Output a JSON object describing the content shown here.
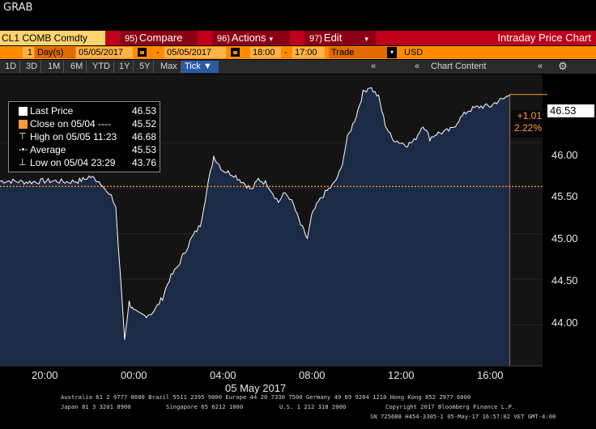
{
  "window_title": "GRAB",
  "command_bar": {
    "ticker": "CL1 COMB Comdty",
    "buttons": [
      {
        "num": "95)",
        "label": "Compare"
      },
      {
        "num": "96)",
        "label": "Actions"
      },
      {
        "num": "97)",
        "label": "Edit"
      }
    ],
    "panel_title": "Intraday Price Chart"
  },
  "date_bar": {
    "period_count": "1",
    "period_unit": "Day(s)",
    "start_date": "05/05/2017",
    "separator": "-",
    "end_date": "05/05/2017",
    "start_time": "18:00",
    "time_sep": "-",
    "end_time": "17:00",
    "field": "Trade",
    "currency": "USD"
  },
  "range_bar": {
    "ranges": [
      "1D",
      "3D",
      "1M",
      "6M",
      "YTD",
      "1Y",
      "5Y",
      "Max"
    ],
    "selected_interval": "Tick",
    "chart_content_label": "Chart Content"
  },
  "legend": {
    "last_price": {
      "label": "Last Price",
      "value": "46.53"
    },
    "close": {
      "label": "Close on 05/04 ----",
      "value": "45.52"
    },
    "high": {
      "label": "High on 05/05 11:23",
      "value": "46.68"
    },
    "average": {
      "label": "Average",
      "value": "45.53"
    },
    "low": {
      "label": "Low on 05/04 23:29",
      "value": "43.76"
    }
  },
  "last_price_tag": "46.53",
  "change": {
    "abs": "+1.01",
    "pct": "2.22%"
  },
  "colors": {
    "area_fill": "#1b2a45",
    "line": "#ffffff",
    "close_line": "#ff9a3a",
    "accent_red": "#c0001a",
    "accent_orange": "#ff8c00"
  },
  "footer": {
    "line1": "Australia 61 2 9777 8600 Brazil 5511 2395 9000 Europe 44 20 7330 7500 Germany 49 69 9204 1210 Hong Kong 852 2977 6000",
    "line2a": "Japan 81 3 3201 8900",
    "line2b": "Singapore 65 6212 1000",
    "line2c": "U.S. 1 212 318 2000",
    "line2d": "Copyright 2017 Bloomberg Finance L.P.",
    "line3": "SN 725688 H454-3305-1 05-May-17 16:57:02 VET  GMT-4:00"
  },
  "chart_data": {
    "type": "area",
    "x_ticks": [
      "20:00",
      "00:00",
      "04:00",
      "08:00",
      "12:00",
      "16:00"
    ],
    "x_date_label": "05 May 2017",
    "y_ticks": [
      "46.00",
      "45.50",
      "45.00",
      "44.50",
      "44.00"
    ],
    "ylim": [
      43.55,
      46.75
    ],
    "close_value": 45.52,
    "last_value": 46.53,
    "series": [
      {
        "hours": [
          0,
          0.5,
          1,
          1.5,
          2,
          2.5,
          3,
          3.5,
          3.8,
          4.0,
          4.3,
          4.6,
          4.8,
          5.0,
          5.2,
          5.3,
          5.5,
          5.6,
          5.8,
          5.9,
          6.0,
          6.2,
          6.5,
          6.8,
          7.0,
          7.3,
          7.6,
          8.0,
          8.3,
          8.6,
          9.0,
          9.3,
          9.6,
          10.0,
          10.5,
          11.0,
          11.3,
          11.6,
          12.0,
          12.5,
          12.8,
          13.0,
          13.2,
          13.5,
          13.8,
          14.0,
          14.3,
          14.6,
          15.0,
          15.3,
          15.6,
          16.0,
          16.3,
          16.6,
          17.0,
          17.3,
          17.6,
          18.0,
          18.3,
          18.6,
          19.0,
          19.3,
          19.6,
          20.0,
          20.3,
          20.6,
          21.0,
          21.3,
          21.6,
          22.0,
          22.3,
          22.6,
          22.9
        ],
        "values": [
          45.58,
          45.58,
          45.57,
          45.57,
          45.58,
          45.58,
          45.57,
          45.58,
          45.6,
          45.63,
          45.6,
          45.55,
          45.45,
          45.4,
          45.3,
          44.9,
          44.2,
          43.85,
          44.25,
          44.2,
          44.15,
          44.12,
          44.1,
          44.13,
          44.18,
          44.3,
          44.5,
          44.65,
          44.8,
          44.95,
          45.1,
          45.5,
          45.85,
          45.7,
          45.65,
          45.55,
          45.48,
          45.6,
          45.55,
          45.35,
          45.45,
          45.4,
          45.3,
          45.1,
          44.95,
          45.2,
          45.35,
          45.45,
          45.55,
          45.7,
          46.05,
          46.3,
          46.55,
          46.62,
          46.5,
          46.2,
          46.05,
          46.0,
          45.98,
          46.02,
          46.2,
          46.05,
          46.1,
          46.12,
          46.15,
          46.25,
          46.35,
          46.38,
          46.4,
          46.4,
          46.45,
          46.48,
          46.53
        ]
      }
    ]
  }
}
